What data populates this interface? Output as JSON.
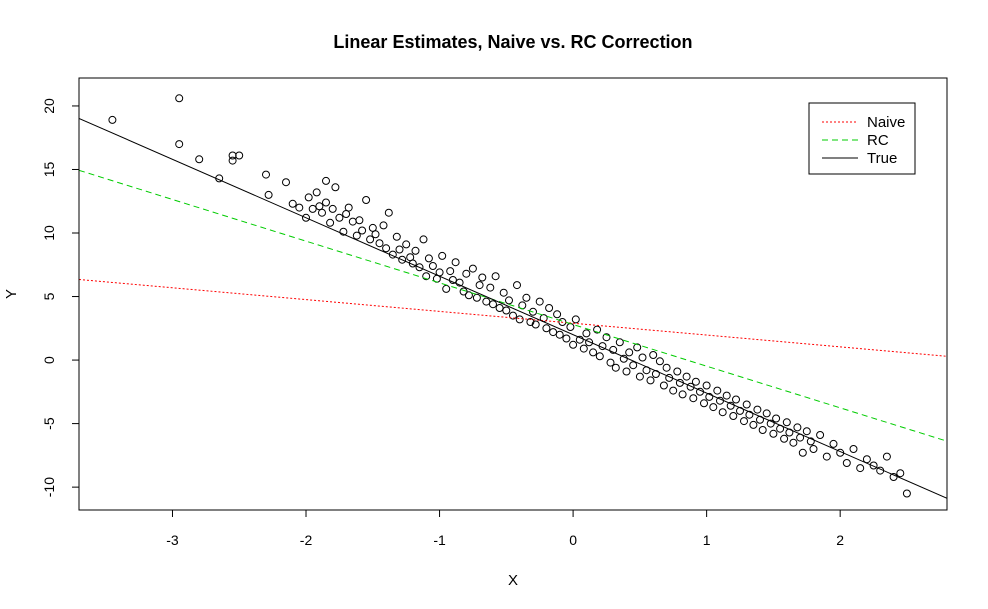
{
  "chart_data": {
    "type": "scatter",
    "title": "Linear Estimates, Naive vs. RC Correction",
    "xlabel": "X",
    "ylabel": "Y",
    "xlim": [
      -3.7,
      2.8
    ],
    "ylim": [
      -11.8,
      22.2
    ],
    "x_ticks": [
      -3,
      -2,
      -1,
      0,
      1,
      2
    ],
    "y_ticks": [
      -10,
      -5,
      0,
      5,
      10,
      15,
      20
    ],
    "grid": false,
    "legend_position": "top-right",
    "series": [
      {
        "name": "Naive",
        "kind": "line",
        "style": "dotted",
        "color": "#ff0000",
        "intercept": 2.9,
        "slope": -0.93
      },
      {
        "name": "RC",
        "kind": "line",
        "style": "dashed",
        "color": "#00cc00",
        "intercept": 2.8,
        "slope": -3.28
      },
      {
        "name": "True",
        "kind": "line",
        "style": "solid",
        "color": "#000000",
        "intercept": 2.0,
        "slope": -4.6
      }
    ],
    "points": {
      "x": [
        -3.45,
        -2.95,
        -2.95,
        -2.8,
        -2.65,
        -2.55,
        -2.55,
        -2.5,
        -2.3,
        -2.28,
        -2.15,
        -2.1,
        -2.05,
        -2.0,
        -1.98,
        -1.95,
        -1.92,
        -1.9,
        -1.88,
        -1.85,
        -1.85,
        -1.82,
        -1.8,
        -1.78,
        -1.75,
        -1.72,
        -1.7,
        -1.68,
        -1.65,
        -1.62,
        -1.6,
        -1.58,
        -1.55,
        -1.52,
        -1.5,
        -1.48,
        -1.45,
        -1.42,
        -1.4,
        -1.38,
        -1.35,
        -1.32,
        -1.3,
        -1.28,
        -1.25,
        -1.22,
        -1.2,
        -1.18,
        -1.15,
        -1.12,
        -1.1,
        -1.08,
        -1.05,
        -1.02,
        -1.0,
        -0.98,
        -0.95,
        -0.92,
        -0.9,
        -0.88,
        -0.85,
        -0.82,
        -0.8,
        -0.78,
        -0.75,
        -0.72,
        -0.7,
        -0.68,
        -0.65,
        -0.62,
        -0.6,
        -0.58,
        -0.55,
        -0.52,
        -0.5,
        -0.48,
        -0.45,
        -0.42,
        -0.4,
        -0.38,
        -0.35,
        -0.32,
        -0.3,
        -0.28,
        -0.25,
        -0.22,
        -0.2,
        -0.18,
        -0.15,
        -0.12,
        -0.1,
        -0.08,
        -0.05,
        -0.02,
        0.0,
        0.02,
        0.05,
        0.08,
        0.1,
        0.12,
        0.15,
        0.18,
        0.2,
        0.22,
        0.25,
        0.28,
        0.3,
        0.32,
        0.35,
        0.38,
        0.4,
        0.42,
        0.45,
        0.48,
        0.5,
        0.52,
        0.55,
        0.58,
        0.6,
        0.62,
        0.65,
        0.68,
        0.7,
        0.72,
        0.75,
        0.78,
        0.8,
        0.82,
        0.85,
        0.88,
        0.9,
        0.92,
        0.95,
        0.98,
        1.0,
        1.02,
        1.05,
        1.08,
        1.1,
        1.12,
        1.15,
        1.18,
        1.2,
        1.22,
        1.25,
        1.28,
        1.3,
        1.32,
        1.35,
        1.38,
        1.4,
        1.42,
        1.45,
        1.48,
        1.5,
        1.52,
        1.55,
        1.58,
        1.6,
        1.62,
        1.65,
        1.68,
        1.7,
        1.72,
        1.75,
        1.78,
        1.8,
        1.85,
        1.9,
        1.95,
        2.0,
        2.05,
        2.1,
        2.15,
        2.2,
        2.25,
        2.3,
        2.35,
        2.4,
        2.45,
        2.5
      ],
      "y": [
        18.9,
        20.6,
        17.0,
        15.8,
        14.3,
        16.1,
        15.7,
        16.1,
        14.6,
        13.0,
        14.0,
        12.3,
        12.0,
        11.2,
        12.8,
        11.9,
        13.2,
        12.1,
        11.6,
        14.1,
        12.4,
        10.8,
        11.9,
        13.6,
        11.2,
        10.1,
        11.5,
        12.0,
        10.9,
        9.8,
        11.0,
        10.2,
        12.6,
        9.5,
        10.4,
        9.9,
        9.2,
        10.6,
        8.8,
        11.6,
        8.3,
        9.7,
        8.7,
        7.9,
        9.1,
        8.1,
        7.6,
        8.6,
        7.3,
        9.5,
        6.6,
        8.0,
        7.4,
        6.4,
        6.9,
        8.2,
        5.6,
        7.0,
        6.3,
        7.7,
        6.1,
        5.4,
        6.8,
        5.1,
        7.2,
        4.9,
        5.9,
        6.5,
        4.6,
        5.7,
        4.4,
        6.6,
        4.1,
        5.3,
        3.9,
        4.7,
        3.5,
        5.9,
        3.2,
        4.3,
        4.9,
        3.0,
        3.8,
        2.8,
        4.6,
        3.3,
        2.5,
        4.1,
        2.2,
        3.6,
        2.0,
        3.0,
        1.7,
        2.6,
        1.2,
        3.2,
        1.6,
        0.9,
        2.1,
        1.4,
        0.6,
        2.4,
        0.3,
        1.1,
        1.8,
        -0.2,
        0.8,
        -0.6,
        1.4,
        0.1,
        -0.9,
        0.6,
        -0.4,
        1.0,
        -1.3,
        0.2,
        -0.8,
        -1.6,
        0.4,
        -1.1,
        -0.1,
        -2.0,
        -0.6,
        -1.4,
        -2.4,
        -0.9,
        -1.8,
        -2.7,
        -1.3,
        -2.1,
        -3.0,
        -1.7,
        -2.5,
        -3.4,
        -2.0,
        -2.9,
        -3.7,
        -2.4,
        -3.2,
        -4.1,
        -2.8,
        -3.6,
        -4.4,
        -3.1,
        -4.0,
        -4.8,
        -3.5,
        -4.3,
        -5.1,
        -3.9,
        -4.7,
        -5.5,
        -4.2,
        -5.0,
        -5.8,
        -4.6,
        -5.4,
        -6.2,
        -4.9,
        -5.7,
        -6.5,
        -5.3,
        -6.1,
        -7.3,
        -5.6,
        -6.4,
        -7.0,
        -5.9,
        -7.6,
        -6.6,
        -7.3,
        -8.1,
        -7.0,
        -8.5,
        -7.8,
        -8.3,
        -8.7,
        -7.6,
        -9.2,
        -8.9,
        -10.5
      ]
    }
  }
}
